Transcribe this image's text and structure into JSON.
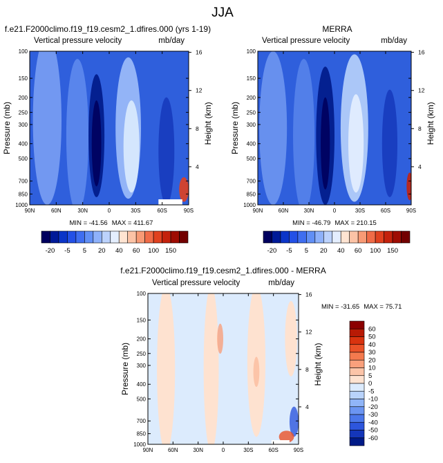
{
  "chart_data": {
    "type": "heatmap",
    "title": "JJA",
    "panels": [
      {
        "id": "model",
        "title": "f.e21.F2000climo.f19_f19.cesm2_1.dfires.000 (yrs 1-19)",
        "subtitle_left": "Vertical pressure velocity",
        "units": "mb/day",
        "ylabel_left": "Pressure (mb)",
        "ylabel_right": "Height (km)",
        "xticks": [
          "90N",
          "60N",
          "30N",
          "0",
          "30S",
          "60S",
          "90S"
        ],
        "xtick_values": [
          90,
          60,
          30,
          0,
          -30,
          -60,
          -90
        ],
        "yticks": [
          "100",
          "150",
          "200",
          "250",
          "300",
          "400",
          "500",
          "700",
          "850",
          "1000"
        ],
        "ytick_values": [
          100,
          150,
          200,
          250,
          300,
          400,
          500,
          700,
          850,
          1000
        ],
        "height_ticks": [
          "16",
          "12",
          "8",
          "4"
        ],
        "height_tick_values": [
          16,
          12,
          8,
          4
        ],
        "ylim": [
          1000,
          100
        ],
        "xlim": [
          90,
          -90
        ],
        "min_label": "MIN = -41.56",
        "max_label": "MAX = 411.67",
        "min": -41.56,
        "max": 411.67
      },
      {
        "id": "merra",
        "title": "MERRA",
        "subtitle_left": "Vertical pressure velocity",
        "units": "mb/day",
        "ylabel_left": "Pressure (mb)",
        "ylabel_right": "Height (km)",
        "xticks": [
          "90N",
          "60N",
          "30N",
          "0",
          "30S",
          "60S",
          "90S"
        ],
        "xtick_values": [
          90,
          60,
          30,
          0,
          -30,
          -60,
          -90
        ],
        "yticks": [
          "100",
          "150",
          "200",
          "250",
          "300",
          "400",
          "500",
          "700",
          "850",
          "1000"
        ],
        "ytick_values": [
          100,
          150,
          200,
          250,
          300,
          400,
          500,
          700,
          850,
          1000
        ],
        "height_ticks": [
          "16",
          "12",
          "8",
          "4"
        ],
        "height_tick_values": [
          16,
          12,
          8,
          4
        ],
        "ylim": [
          1000,
          100
        ],
        "xlim": [
          90,
          -90
        ],
        "min_label": "MIN = -46.79",
        "max_label": "MAX = 210.15",
        "min": -46.79,
        "max": 210.15
      },
      {
        "id": "diff",
        "title": "f.e21.F2000climo.f19_f19.cesm2_1.dfires.000 - MERRA",
        "subtitle_left": "Vertical pressure velocity",
        "units": "mb/day",
        "ylabel_left": "Pressure (mb)",
        "ylabel_right": "Height (km)",
        "xticks": [
          "90N",
          "60N",
          "30N",
          "0",
          "30S",
          "60S",
          "90S"
        ],
        "xtick_values": [
          90,
          60,
          30,
          0,
          -30,
          -60,
          -90
        ],
        "yticks": [
          "100",
          "150",
          "200",
          "250",
          "300",
          "400",
          "500",
          "700",
          "850",
          "1000"
        ],
        "ytick_values": [
          100,
          150,
          200,
          250,
          300,
          400,
          500,
          700,
          850,
          1000
        ],
        "height_ticks": [
          "16",
          "12",
          "8",
          "4"
        ],
        "height_tick_values": [
          16,
          12,
          8,
          4
        ],
        "ylim": [
          1000,
          100
        ],
        "xlim": [
          90,
          -90
        ],
        "min_label": "MIN = -31.65",
        "max_label": "MAX = 75.71",
        "min": -31.65,
        "max": 75.71
      }
    ],
    "shared_colorbar": {
      "orientation": "horizontal",
      "labels": [
        "-20",
        "-5",
        "5",
        "20",
        "40",
        "60",
        "100",
        "150"
      ],
      "colors": [
        "#00005e",
        "#001a98",
        "#0b35c8",
        "#2350e6",
        "#3f6ef0",
        "#618ff5",
        "#8eb1fa",
        "#bcd2fc",
        "#e4eefe",
        "#ffe4d2",
        "#fcc3a6",
        "#f89a75",
        "#f06b47",
        "#e0411f",
        "#c4220c",
        "#9e0c03",
        "#720000"
      ]
    },
    "diff_colorbar": {
      "orientation": "vertical",
      "labels": [
        "60",
        "50",
        "40",
        "30",
        "20",
        "10",
        "5",
        "0",
        "-5",
        "-10",
        "-20",
        "-30",
        "-40",
        "-50",
        "-60"
      ],
      "colors": [
        "#8b0000",
        "#b81a05",
        "#d9330f",
        "#ea5228",
        "#f47a4e",
        "#f9a07c",
        "#fcc4a8",
        "#fee2d0",
        "#dcebfd",
        "#b9d3fb",
        "#90b5f8",
        "#6b95f2",
        "#4b77ea",
        "#2d56dd",
        "#1436b9",
        "#001a87"
      ]
    }
  }
}
